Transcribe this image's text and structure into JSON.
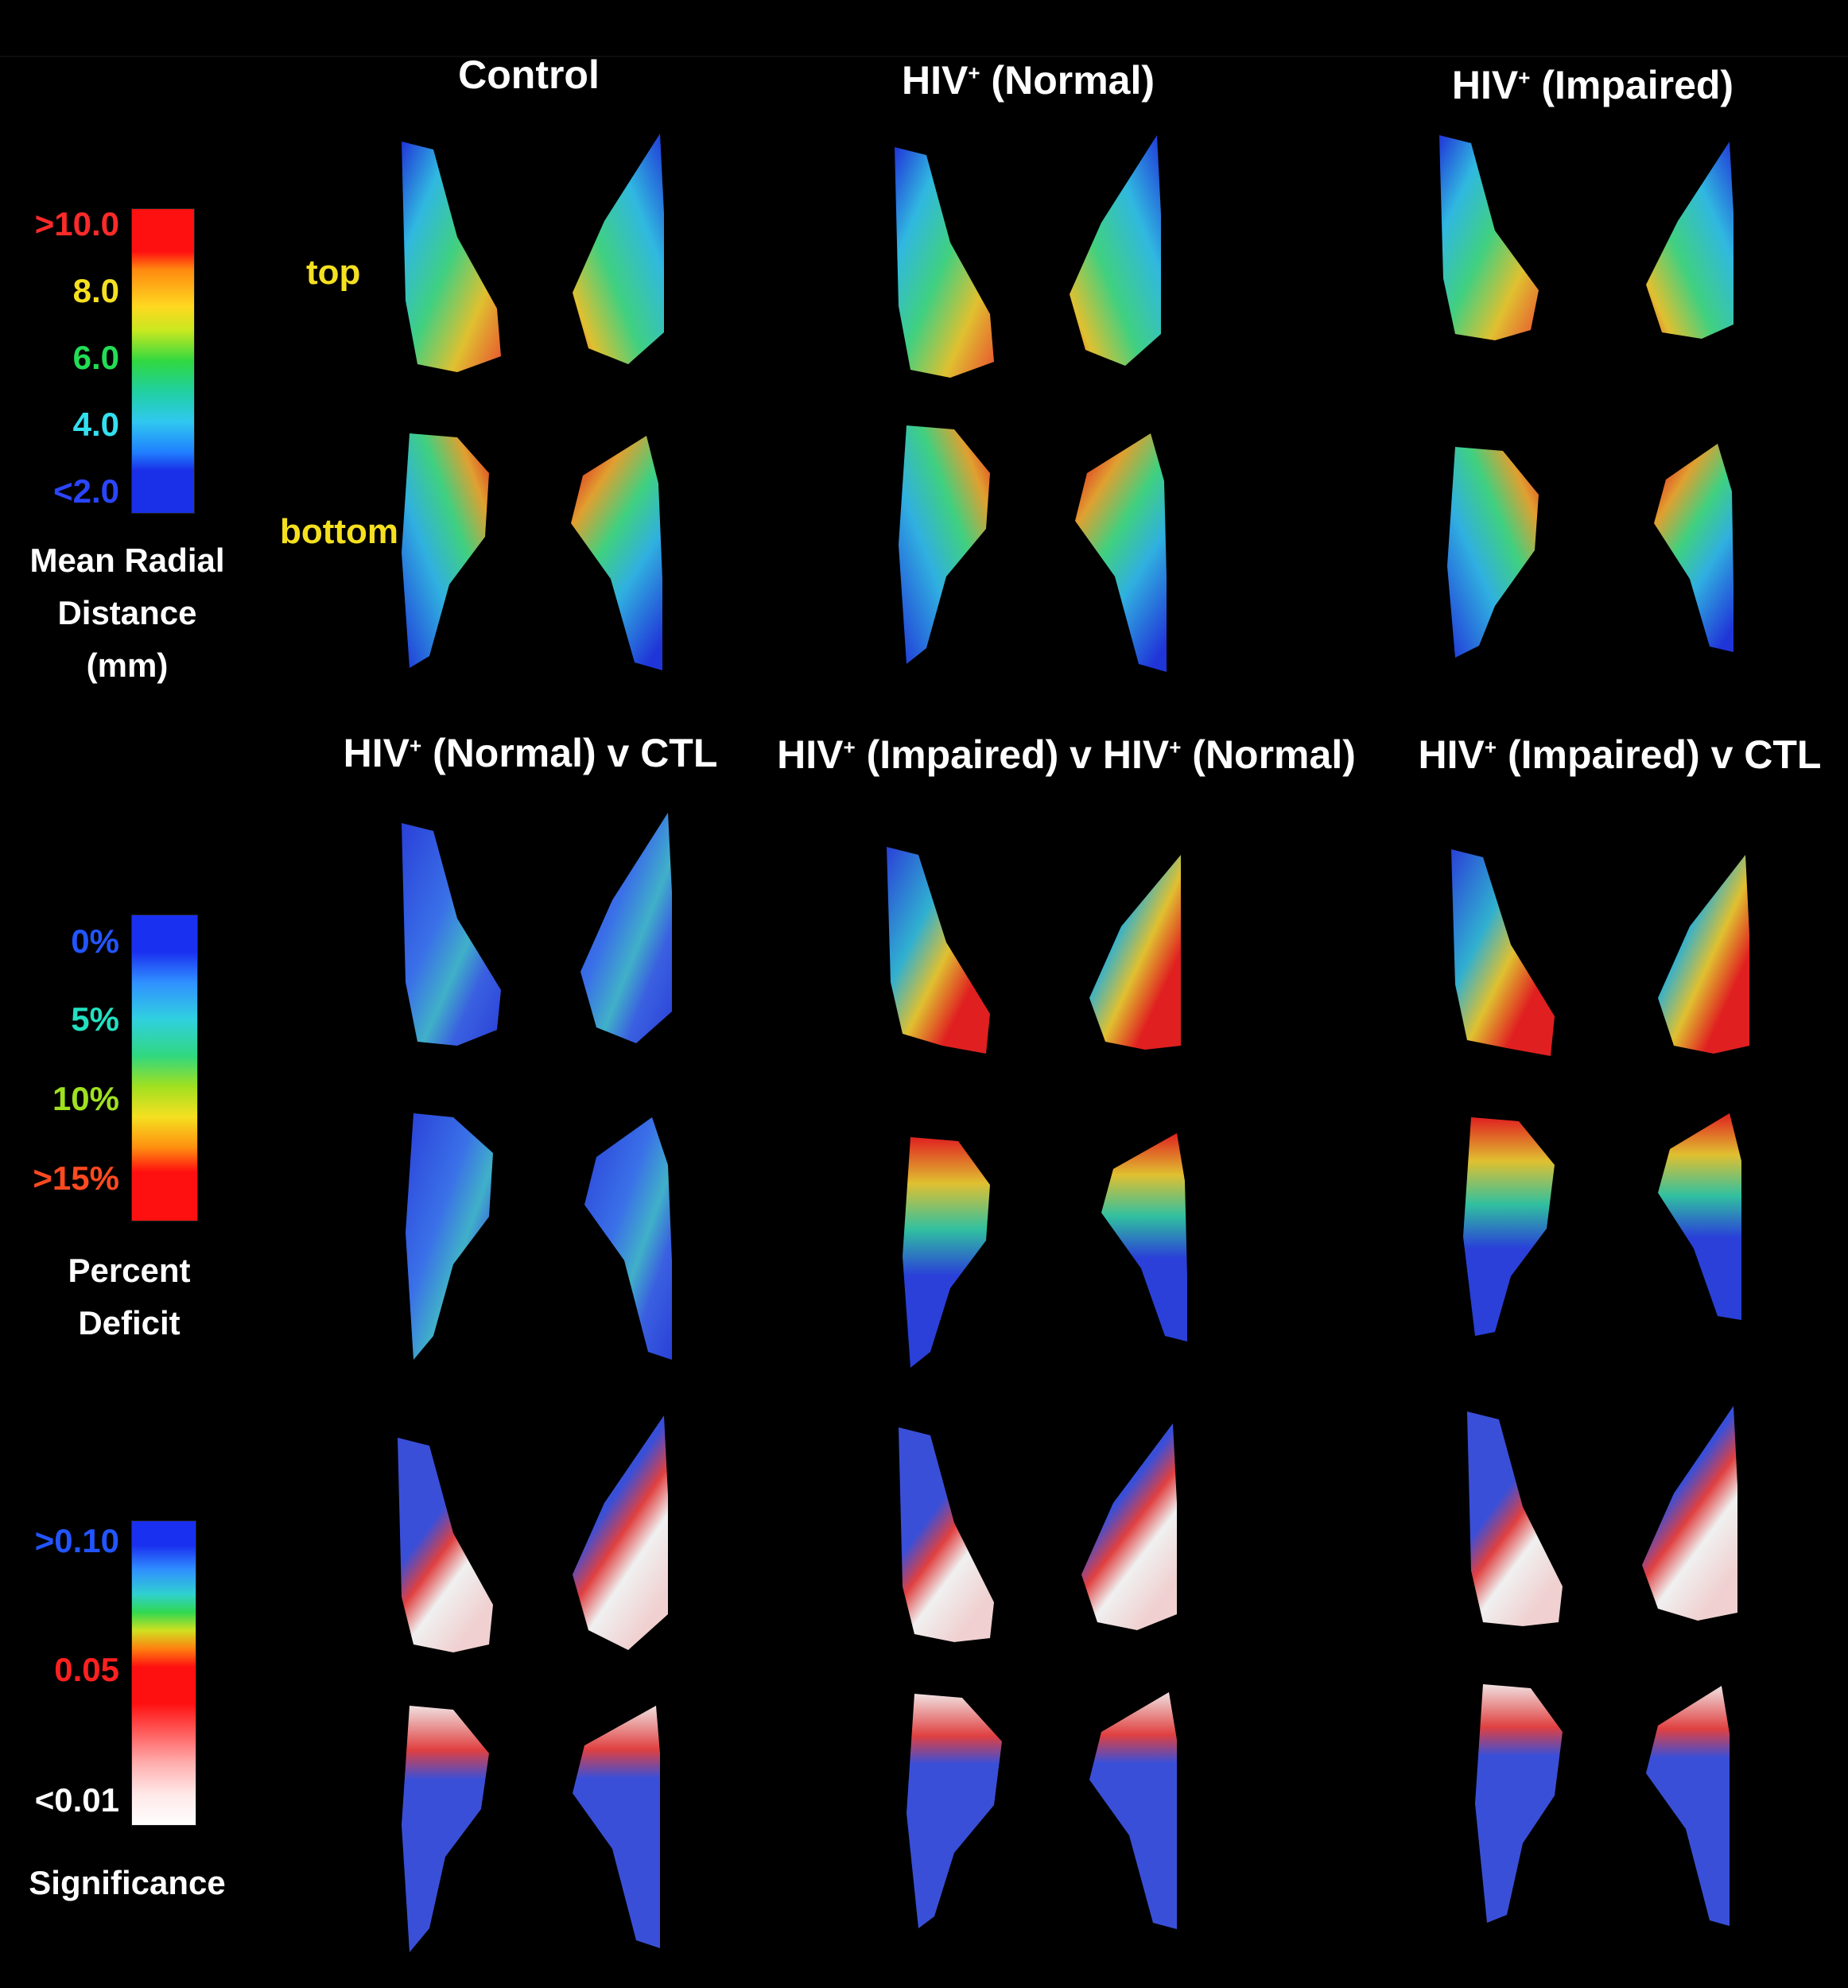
{
  "top_row": {
    "columns": [
      {
        "label": "Control"
      },
      {
        "prefix": "HIV",
        "sup": "+",
        "suffix": " (Normal)"
      },
      {
        "prefix": "HIV",
        "sup": "+",
        "suffix": " (Impaired)"
      }
    ],
    "view_labels": {
      "top": "top",
      "bottom": "bottom"
    }
  },
  "comparison_row": {
    "columns": [
      {
        "prefix": "HIV",
        "sup": "+",
        "suffix": " (Normal) v CTL"
      },
      {
        "prefix": "HIV",
        "sup": "+",
        "suffix": " (Impaired) v HIV",
        "sup2": "+",
        "suffix2": " (Normal)"
      },
      {
        "prefix": "HIV",
        "sup": "+",
        "suffix": " (Impaired) v CTL"
      }
    ]
  },
  "legends": {
    "radial": {
      "ticks": [
        ">10.0",
        "8.0",
        "6.0",
        "4.0",
        "<2.0"
      ],
      "tick_colors": [
        "#ff2a2a",
        "#f5e020",
        "#22dd55",
        "#33e0f0",
        "#2040ff"
      ],
      "title_lines": [
        "Mean Radial",
        "Distance",
        "(mm)"
      ]
    },
    "deficit": {
      "ticks": [
        "0%",
        "5%",
        "10%",
        ">15%"
      ],
      "tick_colors": [
        "#2255ff",
        "#22e0c0",
        "#a0e020",
        "#ff4a20"
      ],
      "title_lines": [
        "Percent",
        "Deficit"
      ]
    },
    "significance": {
      "ticks": [
        ">0.10",
        "0.05",
        "<0.01"
      ],
      "tick_colors": [
        "#2255ff",
        "#ff2020",
        "#ffffff"
      ],
      "title_lines": [
        "Significance"
      ]
    }
  },
  "colors": {
    "background": "#000000",
    "surface_blue": "#3a4fd8",
    "header_text": "#ffffff",
    "view_label": "#f5e020"
  }
}
